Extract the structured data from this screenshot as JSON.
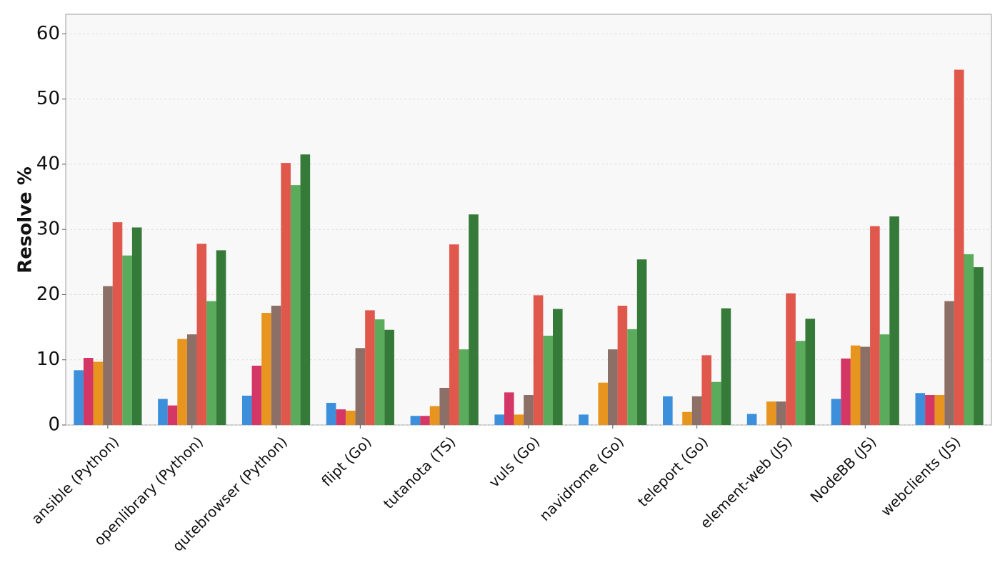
{
  "chart_data": {
    "type": "bar",
    "y_label": "Resolve %",
    "categories": [
      "ansible (Python)",
      "openlibrary (Python)",
      "qutebrowser (Python)",
      "flipt (Go)",
      "tutanota (TS)",
      "vuls (Go)",
      "navidrome (Go)",
      "teleport (Go)",
      "element-web (JS)",
      "NodeBB (JS)",
      "webclients (JS)"
    ],
    "series": [
      {
        "color": "#3b8fdb",
        "values": [
          8.4,
          4.0,
          4.5,
          3.4,
          1.4,
          1.6,
          1.6,
          4.4,
          1.7,
          4.0,
          4.9
        ]
      },
      {
        "color": "#d43766",
        "values": [
          10.3,
          3.0,
          9.1,
          2.4,
          1.4,
          5.0,
          0,
          0,
          0,
          10.2,
          4.6
        ]
      },
      {
        "color": "#e8951f",
        "values": [
          9.7,
          13.2,
          17.2,
          2.2,
          2.9,
          1.6,
          6.5,
          2.0,
          3.6,
          12.2,
          4.6
        ]
      },
      {
        "color": "#8c6f66",
        "values": [
          21.3,
          13.9,
          18.3,
          11.8,
          5.7,
          4.6,
          11.6,
          4.4,
          3.6,
          12.0,
          19.0
        ]
      },
      {
        "color": "#e0584b",
        "values": [
          31.1,
          27.8,
          40.2,
          17.6,
          27.7,
          19.9,
          18.3,
          10.7,
          20.2,
          30.5,
          54.5
        ]
      },
      {
        "color": "#5aab5b",
        "values": [
          26.0,
          19.0,
          36.8,
          16.2,
          11.6,
          13.7,
          14.7,
          6.6,
          12.9,
          13.9,
          26.2
        ]
      },
      {
        "color": "#367a39",
        "values": [
          30.3,
          26.8,
          41.5,
          14.6,
          32.3,
          17.8,
          25.4,
          17.9,
          16.3,
          32.0,
          24.2
        ]
      }
    ],
    "ylim": [
      0,
      63
    ],
    "yticks": [
      0,
      10,
      20,
      30,
      40,
      50,
      60
    ],
    "grid": true
  }
}
